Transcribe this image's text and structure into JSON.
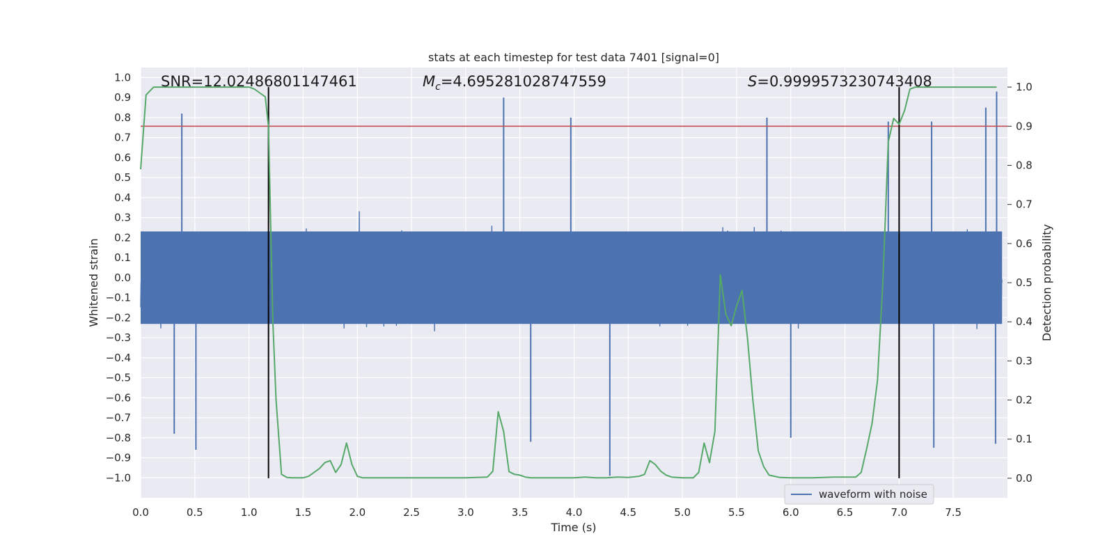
{
  "chart_data": {
    "type": "line",
    "title": "stats at each timestep for test data 7401 [signal=0]",
    "xlabel": "Time (s)",
    "ylabel": "Whitened strain",
    "y2label": "Detection probability",
    "xlim": [
      0.0,
      8.0
    ],
    "ylim": [
      -1.1,
      1.05
    ],
    "y2lim": [
      -0.05,
      1.05
    ],
    "x_ticks": [
      "0.0",
      "0.5",
      "1.0",
      "1.5",
      "2.0",
      "2.5",
      "3.0",
      "3.5",
      "4.0",
      "4.5",
      "5.0",
      "5.5",
      "6.0",
      "6.5",
      "7.0",
      "7.5"
    ],
    "y_ticks": [
      "1.0",
      "0.9",
      "0.8",
      "0.7",
      "0.6",
      "0.5",
      "0.4",
      "0.3",
      "0.2",
      "0.1",
      "0.0",
      "−0.1",
      "−0.2",
      "−0.3",
      "−0.4",
      "−0.5",
      "−0.6",
      "−0.7",
      "−0.8",
      "−0.9",
      "−1.0"
    ],
    "y2_ticks": [
      "1.0",
      "0.9",
      "0.8",
      "0.7",
      "0.6",
      "0.5",
      "0.4",
      "0.3",
      "0.2",
      "0.1",
      "0.0"
    ],
    "grid": true,
    "legend_position": "lower-right",
    "annotations": {
      "snr": "SNR=12.02486801147461",
      "mc_symbol": "M",
      "mc_sub": "c",
      "mc_value": "=4.695281028747559",
      "s_symbol": "S",
      "s_value": "=0.9999573230743408"
    },
    "series": [
      {
        "name": "waveform with noise",
        "color": "#4c72b0",
        "sample_rate_hz": 2048,
        "typical_upper_envelope": 0.42,
        "typical_lower_envelope": -0.42,
        "spikes": [
          {
            "x": 0.38,
            "y": 0.82
          },
          {
            "x": 3.35,
            "y": 0.9
          },
          {
            "x": 3.97,
            "y": 0.8
          },
          {
            "x": 7.9,
            "y": 0.93
          },
          {
            "x": 7.8,
            "y": 0.85
          },
          {
            "x": 5.78,
            "y": 0.8
          },
          {
            "x": 6.9,
            "y": 0.78
          },
          {
            "x": 7.3,
            "y": 0.78
          },
          {
            "x": 0.31,
            "y": -0.78
          },
          {
            "x": 0.51,
            "y": -0.86
          },
          {
            "x": 4.33,
            "y": -0.99
          },
          {
            "x": 3.6,
            "y": -0.82
          },
          {
            "x": 7.32,
            "y": -0.85
          },
          {
            "x": 7.89,
            "y": -0.83
          },
          {
            "x": 6.0,
            "y": -0.8
          }
        ]
      },
      {
        "name": "Detection probability",
        "color": "#55a868",
        "axis": "right",
        "x": [
          0.0,
          0.05,
          0.12,
          0.2,
          0.4,
          0.6,
          0.8,
          1.0,
          1.05,
          1.1,
          1.15,
          1.18,
          1.22,
          1.25,
          1.3,
          1.35,
          1.4,
          1.5,
          1.55,
          1.6,
          1.65,
          1.7,
          1.75,
          1.8,
          1.85,
          1.9,
          1.95,
          2.0,
          2.05,
          2.1,
          2.2,
          2.4,
          2.6,
          2.8,
          3.0,
          3.2,
          3.25,
          3.3,
          3.35,
          3.4,
          3.45,
          3.5,
          3.55,
          3.6,
          3.7,
          3.8,
          4.0,
          4.1,
          4.2,
          4.3,
          4.4,
          4.5,
          4.6,
          4.65,
          4.7,
          4.75,
          4.8,
          4.85,
          4.9,
          5.0,
          5.1,
          5.15,
          5.2,
          5.25,
          5.3,
          5.35,
          5.4,
          5.45,
          5.5,
          5.55,
          5.6,
          5.65,
          5.7,
          5.75,
          5.8,
          5.85,
          5.9,
          6.0,
          6.2,
          6.4,
          6.6,
          6.65,
          6.7,
          6.75,
          6.8,
          6.85,
          6.9,
          6.95,
          7.0,
          7.05,
          7.1,
          7.15,
          7.2,
          7.25,
          7.3,
          7.4,
          7.5,
          7.6,
          7.7,
          7.8,
          7.9
        ],
        "y": [
          0.79,
          0.98,
          1.0,
          1.0,
          1.0,
          1.0,
          1.0,
          1.0,
          0.995,
          0.985,
          0.975,
          0.9,
          0.4,
          0.2,
          0.01,
          0.002,
          0.001,
          0.001,
          0.005,
          0.015,
          0.025,
          0.04,
          0.045,
          0.015,
          0.035,
          0.09,
          0.035,
          0.005,
          0.001,
          0.001,
          0.001,
          0.001,
          0.001,
          0.001,
          0.001,
          0.003,
          0.018,
          0.17,
          0.12,
          0.017,
          0.01,
          0.008,
          0.003,
          0.001,
          0.001,
          0.001,
          0.001,
          0.003,
          0.001,
          0.001,
          0.003,
          0.002,
          0.005,
          0.01,
          0.045,
          0.035,
          0.018,
          0.008,
          0.003,
          0.001,
          0.001,
          0.015,
          0.09,
          0.04,
          0.12,
          0.52,
          0.42,
          0.39,
          0.44,
          0.48,
          0.36,
          0.2,
          0.07,
          0.03,
          0.008,
          0.005,
          0.002,
          0.001,
          0.001,
          0.003,
          0.003,
          0.015,
          0.075,
          0.14,
          0.25,
          0.5,
          0.86,
          0.92,
          0.905,
          0.94,
          0.995,
          1.0,
          1.0,
          1.0,
          1.0,
          1.0,
          1.0,
          1.0,
          1.0,
          1.0,
          1.0
        ]
      }
    ],
    "threshold": {
      "y2": 0.9,
      "color": "#c44e52"
    },
    "vertical_markers": [
      1.18,
      7.0
    ],
    "legend": [
      "waveform with noise"
    ]
  }
}
